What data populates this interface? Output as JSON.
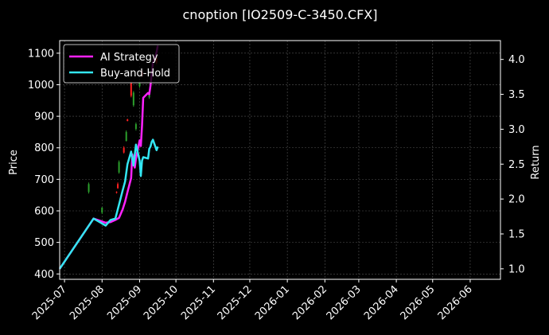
{
  "chart_data": {
    "type": "line",
    "title": "cnoption [IO2509-C-3450.CFX]",
    "ylabel": "Price",
    "y2label": "Return",
    "ylim": [
      383,
      1140
    ],
    "y2lim": [
      0.85,
      4.27
    ],
    "yticks": [
      400,
      500,
      600,
      700,
      800,
      900,
      1000,
      1100
    ],
    "y2ticks": [
      "1.0",
      "1.5",
      "2.0",
      "2.5",
      "3.0",
      "3.5",
      "4.0"
    ],
    "y2tick_values": [
      1.0,
      1.5,
      2.0,
      2.5,
      3.0,
      3.5,
      4.0
    ],
    "xlim": [
      "2025-06-27",
      "2026-06-26"
    ],
    "xticks": [
      "2025-07",
      "2025-08",
      "2025-09",
      "2025-10",
      "2025-11",
      "2025-12",
      "2026-01",
      "2026-02",
      "2026-03",
      "2026-04",
      "2026-05",
      "2026-06"
    ],
    "xtick_dates": [
      "2025-07-01",
      "2025-08-01",
      "2025-09-01",
      "2025-10-01",
      "2025-11-01",
      "2025-12-01",
      "2026-01-01",
      "2026-02-01",
      "2026-03-01",
      "2026-04-01",
      "2026-05-01",
      "2026-06-01"
    ],
    "grid": true,
    "legend_position": "top-left",
    "colors": {
      "background": "#000000",
      "ai": "#ff22ff",
      "bh": "#33e6f2",
      "up": "#2ca02c",
      "down": "#ff2020",
      "grid": "#555555",
      "axis": "#ffffff"
    },
    "series": [
      {
        "name": "AI Strategy",
        "axis": "right",
        "points": [
          [
            "2025-06-27",
            1.0
          ],
          [
            "2025-07-25",
            1.72
          ],
          [
            "2025-08-04",
            1.66
          ],
          [
            "2025-08-08",
            1.67
          ],
          [
            "2025-08-12",
            1.7
          ],
          [
            "2025-08-15",
            1.73
          ],
          [
            "2025-08-18",
            1.85
          ],
          [
            "2025-08-20",
            1.96
          ],
          [
            "2025-08-22",
            2.1
          ],
          [
            "2025-08-25",
            2.3
          ],
          [
            "2025-08-26",
            2.64
          ],
          [
            "2025-08-27",
            2.55
          ],
          [
            "2025-08-28",
            2.45
          ],
          [
            "2025-08-29",
            2.58
          ],
          [
            "2025-09-01",
            2.84
          ],
          [
            "2025-09-02",
            2.76
          ],
          [
            "2025-09-03",
            3.05
          ],
          [
            "2025-09-04",
            3.45
          ],
          [
            "2025-09-08",
            3.52
          ],
          [
            "2025-09-09",
            3.5
          ],
          [
            "2025-09-10",
            3.62
          ],
          [
            "2025-09-11",
            3.8
          ],
          [
            "2025-09-12",
            3.95
          ],
          [
            "2025-09-15",
            4.1
          ],
          [
            "2025-09-16",
            4.2
          ]
        ]
      },
      {
        "name": "Buy-and-Hold",
        "axis": "right",
        "points": [
          [
            "2025-06-27",
            1.0
          ],
          [
            "2025-07-25",
            1.72
          ],
          [
            "2025-08-04",
            1.62
          ],
          [
            "2025-08-08",
            1.7
          ],
          [
            "2025-08-12",
            1.72
          ],
          [
            "2025-08-15",
            1.92
          ],
          [
            "2025-08-18",
            2.12
          ],
          [
            "2025-08-20",
            2.25
          ],
          [
            "2025-08-22",
            2.5
          ],
          [
            "2025-08-25",
            2.68
          ],
          [
            "2025-08-27",
            2.48
          ],
          [
            "2025-08-29",
            2.78
          ],
          [
            "2025-09-01",
            2.55
          ],
          [
            "2025-09-02",
            2.33
          ],
          [
            "2025-09-03",
            2.55
          ],
          [
            "2025-09-04",
            2.6
          ],
          [
            "2025-09-08",
            2.58
          ],
          [
            "2025-09-09",
            2.72
          ],
          [
            "2025-09-10",
            2.75
          ],
          [
            "2025-09-11",
            2.82
          ],
          [
            "2025-09-12",
            2.85
          ],
          [
            "2025-09-15",
            2.7
          ],
          [
            "2025-09-16",
            2.75
          ]
        ]
      }
    ],
    "candles": [
      {
        "date": "2025-07-21",
        "open": 660,
        "close": 685,
        "low": 655,
        "high": 690
      },
      {
        "date": "2025-08-01",
        "open": 595,
        "close": 610,
        "low": 590,
        "high": 612
      },
      {
        "date": "2025-08-13",
        "open": 660,
        "close": 658,
        "low": 655,
        "high": 662
      },
      {
        "date": "2025-08-14",
        "open": 685,
        "close": 672,
        "low": 670,
        "high": 690
      },
      {
        "date": "2025-08-15",
        "open": 722,
        "close": 755,
        "low": 718,
        "high": 760
      },
      {
        "date": "2025-08-19",
        "open": 800,
        "close": 785,
        "low": 782,
        "high": 805
      },
      {
        "date": "2025-08-21",
        "open": 822,
        "close": 850,
        "low": 820,
        "high": 855
      },
      {
        "date": "2025-08-22",
        "open": 890,
        "close": 885,
        "low": 884,
        "high": 892
      },
      {
        "date": "2025-08-25",
        "open": 1005,
        "close": 965,
        "low": 960,
        "high": 1010
      },
      {
        "date": "2025-08-27",
        "open": 935,
        "close": 975,
        "low": 930,
        "high": 980
      },
      {
        "date": "2025-08-29",
        "open": 860,
        "close": 875,
        "low": 855,
        "high": 880
      },
      {
        "date": "2025-09-01",
        "open": 995,
        "close": 1005,
        "low": 990,
        "high": 1010
      },
      {
        "date": "2025-09-03",
        "open": 1040,
        "close": 1030,
        "low": 1025,
        "high": 1045
      },
      {
        "date": "2025-09-09",
        "open": 960,
        "close": 975,
        "low": 955,
        "high": 980
      },
      {
        "date": "2025-09-15",
        "open": 1085,
        "close": 1070,
        "low": 1065,
        "high": 1090
      }
    ]
  }
}
